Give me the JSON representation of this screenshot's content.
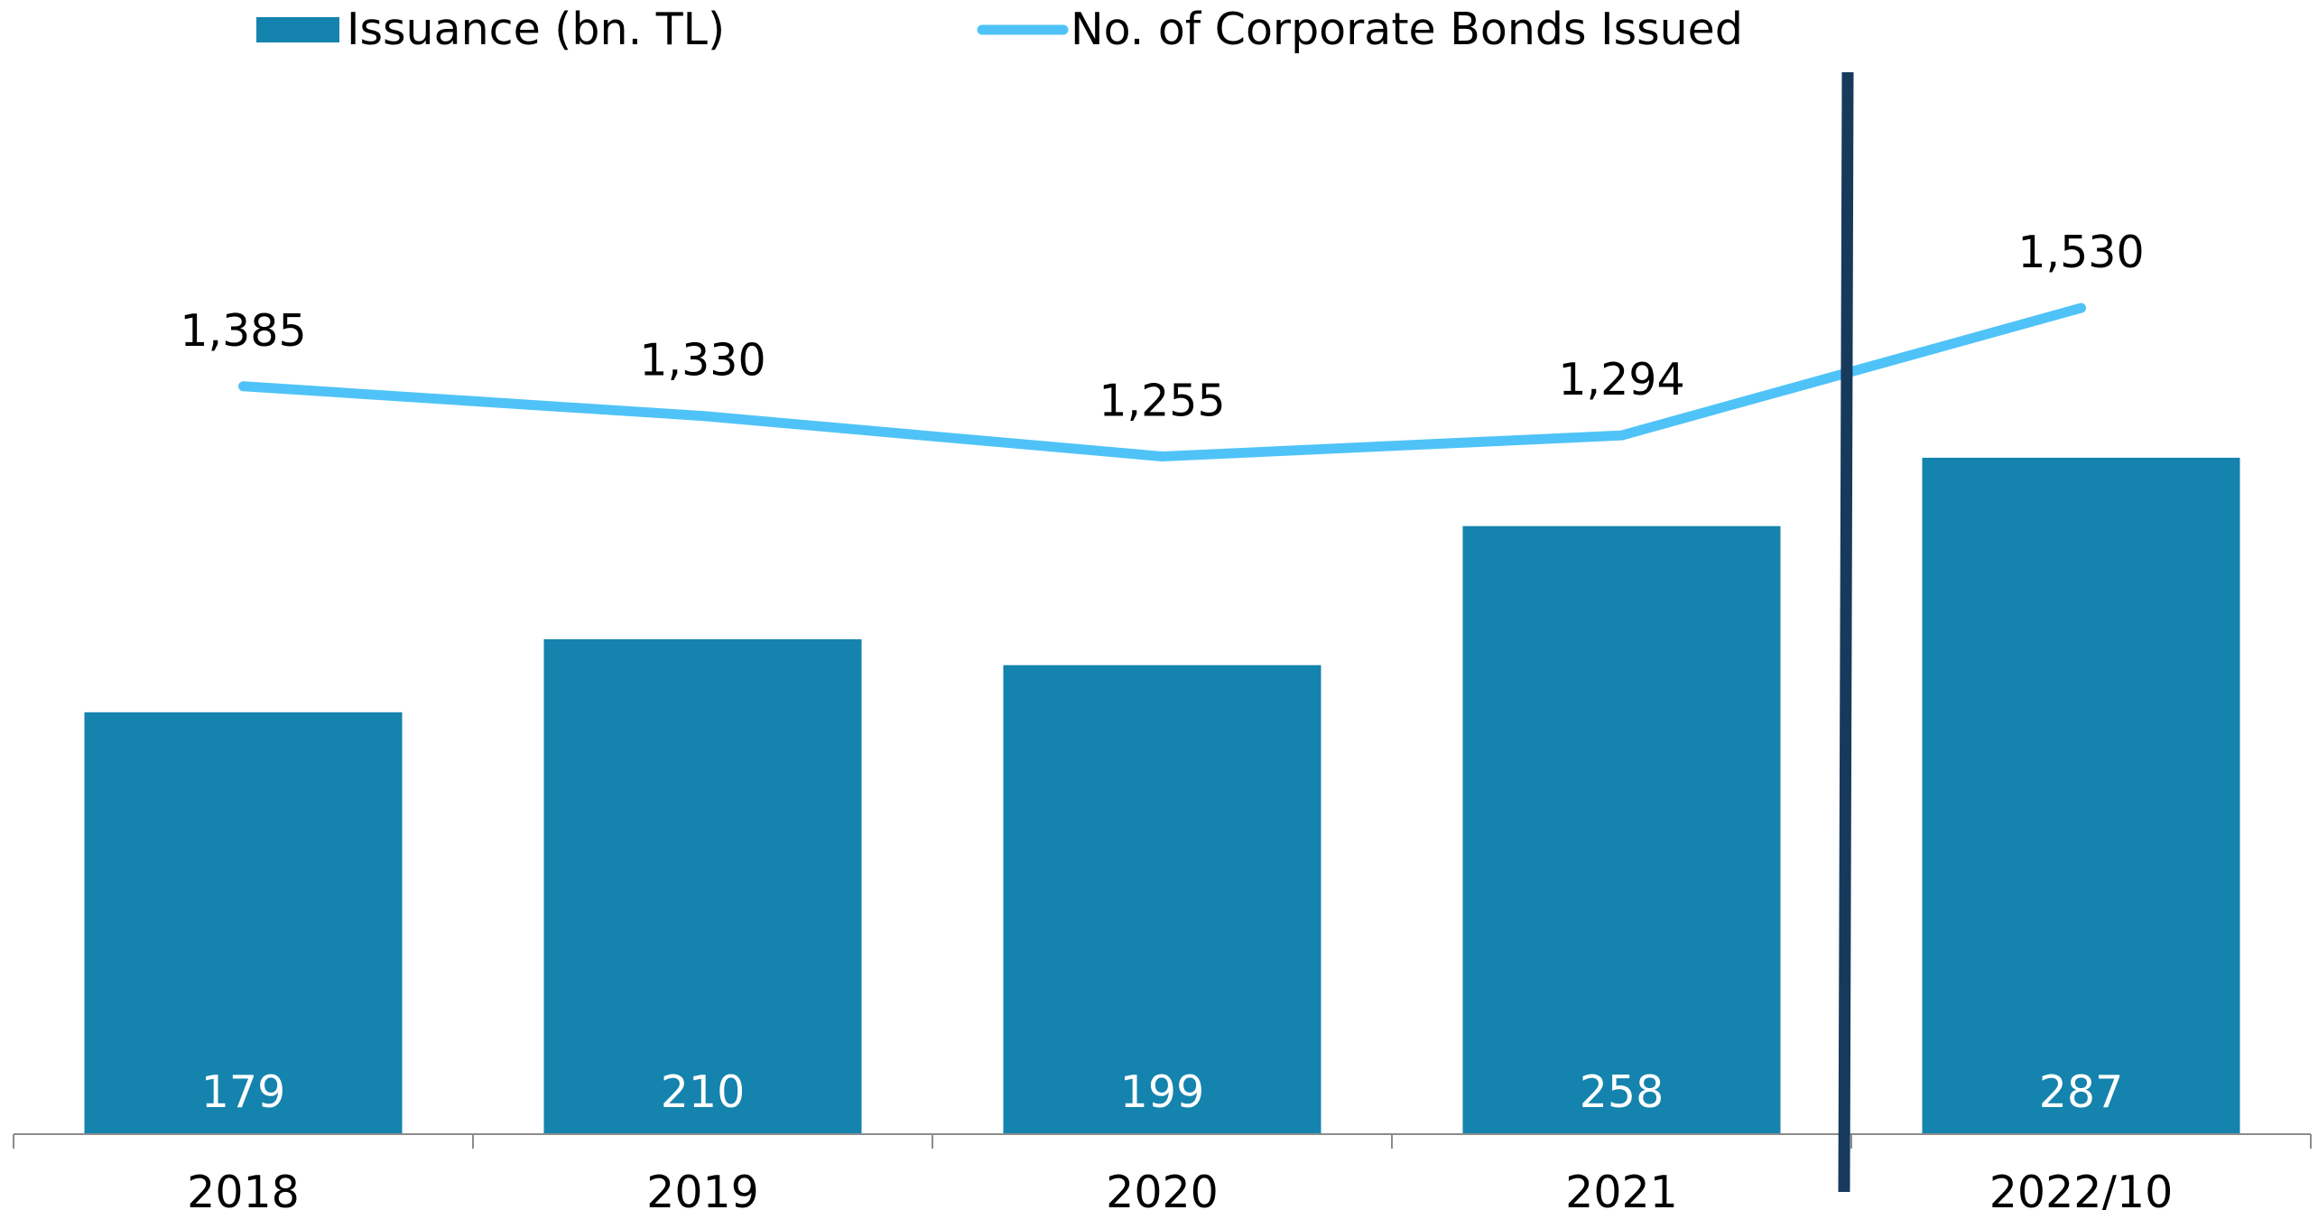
{
  "chart_data": {
    "type": "bar",
    "categories": [
      "2018",
      "2019",
      "2020",
      "2021",
      "2022/10"
    ],
    "series": [
      {
        "name": "Issuance (bn. TL)",
        "type": "bar",
        "values": [
          179,
          210,
          199,
          258,
          287
        ],
        "labels": [
          "179",
          "210",
          "199",
          "258",
          "287"
        ],
        "color": "#1483ad"
      },
      {
        "name": "No. of Corporate Bonds Issued",
        "type": "line",
        "values": [
          1385,
          1330,
          1255,
          1294,
          1530
        ],
        "labels": [
          "1,385",
          "1,330",
          "1,255",
          "1,294",
          "1,530"
        ],
        "color": "#4fc3f7"
      }
    ],
    "ylim": [
      0,
      320
    ],
    "y2lim": [
      0,
      2050
    ],
    "legend_position": "top",
    "grid": false,
    "title": "",
    "xlabel": "",
    "ylabel": "",
    "separator_color": "#173a5c",
    "axis_color": "#8c8c8c"
  }
}
